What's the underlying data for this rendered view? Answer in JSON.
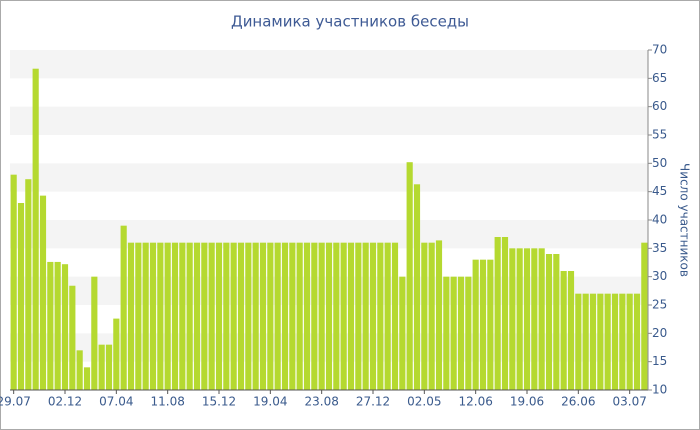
{
  "chart_data": {
    "type": "bar",
    "title": "Динамика участников беседы",
    "y_axis_label": "Число участников",
    "categories": [
      "29.07",
      null,
      null,
      null,
      null,
      null,
      null,
      "02.12",
      null,
      null,
      null,
      null,
      null,
      null,
      "07.04",
      null,
      null,
      null,
      null,
      null,
      null,
      "11.08",
      null,
      null,
      null,
      null,
      null,
      null,
      "15.12",
      null,
      null,
      null,
      null,
      null,
      null,
      "19.04",
      null,
      null,
      null,
      null,
      null,
      null,
      "23.08",
      null,
      null,
      null,
      null,
      null,
      null,
      "27.12",
      null,
      null,
      null,
      null,
      null,
      null,
      "02.05",
      null,
      null,
      null,
      null,
      null,
      null,
      "12.06",
      null,
      null,
      null,
      null,
      null,
      null,
      "19.06",
      null,
      null,
      null,
      null,
      null,
      null,
      "26.06",
      null,
      null,
      null,
      null,
      null,
      null,
      "03.07",
      null,
      null
    ],
    "values": [
      48,
      43,
      47.2,
      66.7,
      44.3,
      32.6,
      32.6,
      32.2,
      28.4,
      17,
      14,
      30,
      18,
      18,
      22.6,
      39,
      36,
      36,
      36,
      36,
      36,
      36,
      36,
      36,
      36,
      36,
      36,
      36,
      36,
      36,
      36,
      36,
      36,
      36,
      36,
      36,
      36,
      36,
      36,
      36,
      36,
      36,
      36,
      36,
      36,
      36,
      36,
      36,
      36,
      36,
      36,
      36,
      36,
      30,
      50.2,
      46.3,
      36,
      36,
      36.4,
      30,
      30,
      30,
      30,
      33,
      33,
      33,
      37,
      37,
      35,
      35,
      35,
      35,
      35,
      34,
      34,
      31,
      31,
      27,
      27,
      27,
      27,
      27,
      27,
      27,
      27,
      27,
      36
    ],
    "color": "#b5d930",
    "ylim": [
      10,
      70
    ],
    "yticks": [
      10,
      15,
      20,
      25,
      30,
      35,
      40,
      45,
      50,
      55,
      60,
      65,
      70
    ],
    "grid": "bands"
  }
}
